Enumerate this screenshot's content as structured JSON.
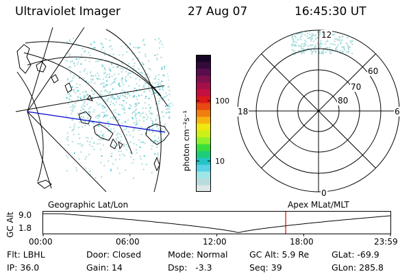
{
  "header": {
    "title": "Ultraviolet Imager",
    "date": "27 Aug 07",
    "time": "16:45:30 UT"
  },
  "colorbar": {
    "unit_label": "photon cm⁻²s⁻¹",
    "ticks": [
      "100",
      "10"
    ],
    "colors": [
      "#dce8e8",
      "#b8dcdc",
      "#9ee6e6",
      "#58d2e6",
      "#24c4c4",
      "#1ccc78",
      "#3ade3a",
      "#8ef02a",
      "#ccf018",
      "#f0e810",
      "#f8b410",
      "#f07e10",
      "#e84a12",
      "#dc1818",
      "#c41040",
      "#a4104a",
      "#7e104e",
      "#580e4e",
      "#340a3a",
      "#160626"
    ]
  },
  "polar": {
    "mlt_labels": {
      "top": "12",
      "left": "18",
      "right": "6",
      "bottom": "0"
    },
    "lat_labels": [
      "60",
      "70",
      "80"
    ]
  },
  "timeline": {
    "left_caption": "Geographic Lat/Lon",
    "right_caption": "Apex MLat/MLT",
    "axis_label": "GC Alt",
    "y_ticks": [
      "9.0",
      "1.8"
    ],
    "x_ticks": [
      "00:00",
      "06:00",
      "12:00",
      "18:00",
      "23:59"
    ],
    "current_time_hours": 16.76,
    "marker_color": "#dd0000"
  },
  "status": {
    "row1": [
      "Flt: LBHL",
      "Door: Closed",
      "Mode: Normal",
      "GC Alt: 5.9 Re",
      "GLat: -69.9"
    ],
    "row2": [
      "IP: 36.0",
      "Gain: 14",
      "Dsp:   -3.3",
      "Seq: 39",
      "GLon: 285.8"
    ]
  },
  "colors": {
    "glow": "#a8dcdc",
    "glow_bright": "#48c8d8",
    "terminator_line": "#0000cc"
  }
}
